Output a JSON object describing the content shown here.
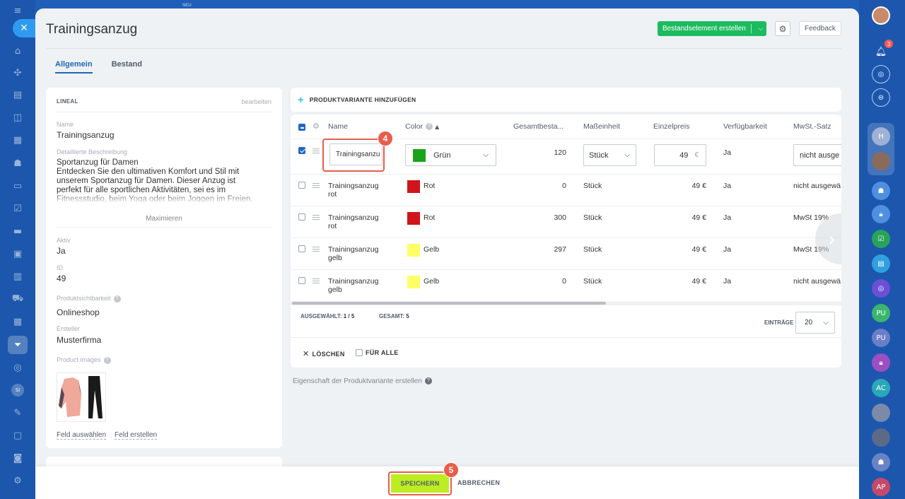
{
  "left_rail": {
    "icons": [
      "menu-icon",
      "home-icon",
      "puzzle-icon",
      "feed-icon",
      "chat-icon",
      "calendar-icon",
      "group-icon",
      "document-icon",
      "tasks-icon",
      "wallet-icon",
      "contact-center-icon",
      "analytics-icon",
      "shop-icon",
      "booking-icon",
      "funnel-icon",
      "target-icon",
      "user-initials-icon",
      "sign-icon",
      "card-icon",
      "robot-icon",
      "settings-icon"
    ],
    "user_initials": "SI",
    "new_label": "NEU"
  },
  "right_rail": {
    "notification_count": "3",
    "avatars": [
      "PU",
      "PU",
      "AC",
      "AP"
    ]
  },
  "header": {
    "title": "Trainingsanzug",
    "create_button": "Bestandselement erstellen",
    "feedback_button": "Feedback"
  },
  "tabs": [
    {
      "label": "Allgemein",
      "active": true
    },
    {
      "label": "Bestand",
      "active": false
    }
  ],
  "left_card": {
    "section_title": "LINEAL",
    "edit_link": "bearbeiten",
    "name_label": "Name",
    "name_value": "Trainingsanzug",
    "desc_label": "Detaillierte Beschreibung",
    "desc_value": "Sportanzug für Damen\nEntdecken Sie den ultimativen Komfort und Stil mit unserem Sportanzug für Damen. Dieser Anzug ist perfekt für alle sportlichen Aktivitäten, sei es im Fitnessstudio, beim Yoga oder beim Joggen im Freien.",
    "maximize": "Maximieren",
    "active_label": "Aktiv",
    "active_value": "Ja",
    "id_label": "ID",
    "id_value": "49",
    "visibility_label": "Produktsichtbarkeit",
    "visibility_value": "Onlineshop",
    "creator_label": "Ersteller",
    "creator_value": "Musterfirma",
    "images_label": "Product images",
    "select_field": "Feld auswählen",
    "create_field": "Feld erstellen"
  },
  "variants": {
    "add_label": "PRODUKTVARIANTE HINZUFÜGEN",
    "columns": [
      "Name",
      "Color",
      "Gesamtbesta...",
      "Maßeinheit",
      "Einzelpreis",
      "Verfügbarkeit",
      "MwSt.-Satz"
    ],
    "edit_row": {
      "name": "Trainingsanzu",
      "color": "Grün",
      "color_hex": "#1aa31a",
      "stock": "120",
      "unit": "Stück",
      "price": "49",
      "currency": "€",
      "availability": "Ja",
      "vat": "nicht ausge"
    },
    "rows": [
      {
        "name1": "Trainingsanzug",
        "name2": "rot",
        "color": "Rot",
        "color_hex": "#d0141b",
        "stock": "0",
        "unit": "Stück",
        "price": "49 €",
        "availability": "Ja",
        "vat": "nicht ausgewä"
      },
      {
        "name1": "Trainingsanzug",
        "name2": "rot",
        "color": "Rot",
        "color_hex": "#d0141b",
        "stock": "300",
        "unit": "Stück",
        "price": "49 €",
        "availability": "Ja",
        "vat": "MwSt 19%"
      },
      {
        "name1": "Trainingsanzug",
        "name2": "gelb",
        "color": "Gelb",
        "color_hex": "#ffff66",
        "stock": "297",
        "unit": "Stück",
        "price": "49 €",
        "availability": "Ja",
        "vat": "MwSt 19%"
      },
      {
        "name1": "Trainingsanzug",
        "name2": "gelb",
        "color": "Gelb",
        "color_hex": "#ffff66",
        "stock": "0",
        "unit": "Stück",
        "price": "49 €",
        "availability": "Ja",
        "vat": "nicht ausgewä"
      }
    ],
    "selected_label": "AUSGEWÄHLT:",
    "selected_value": "1 / 5",
    "total_label": "GESAMT:",
    "total_value": "5",
    "entries_label": "EINTRÄGE",
    "entries_value": "20",
    "delete_label": "LÖSCHEN",
    "for_all_label": "FÜR ALLE",
    "create_property": "Eigenschaft der Produktvariante erstellen"
  },
  "annotations": {
    "step4": "4",
    "step5": "5"
  },
  "footer": {
    "save": "SPEICHERN",
    "cancel": "ABBRECHEN"
  },
  "colors": {
    "accent": "#2067b0",
    "save": "#bbed21",
    "create": "#1dbb5f",
    "highlight": "#e85d4b"
  }
}
